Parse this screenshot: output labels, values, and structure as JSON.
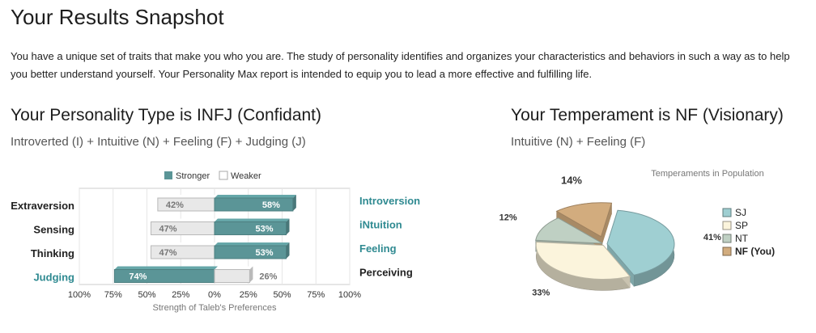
{
  "page": {
    "title": "Your Results Snapshot",
    "intro": "You have a unique set of traits that make you who you are. The study of personality identifies and organizes your characteristics and behaviors in such a way as to help you better understand yourself. Your Personality Max report is intended to equip you to lead a more effective and fulfilling life."
  },
  "personality": {
    "heading": "Your Personality Type is INFJ (Confidant)",
    "subheading": "Introverted (I) + Intuitive (N) + Feeling (F) + Judging (J)"
  },
  "temperament": {
    "heading": "Your Temperament is NF (Visionary)",
    "subheading": "Intuitive (N) + Feeling (F)"
  },
  "colors": {
    "stronger": "#5b9597",
    "weaker": "#e8e8e8",
    "accent": "#2f8a91",
    "SJ": "#9fcfd2",
    "SP": "#fbf4dc",
    "NT": "#bfd0c3",
    "NF": "#d2ac7e"
  },
  "chart_data": [
    {
      "type": "bar",
      "title": "",
      "xlabel": "Strength of Taleb's Preferences",
      "ylabel": "",
      "xlim": [
        -100,
        100
      ],
      "x_ticks": [
        "100%",
        "75%",
        "50%",
        "25%",
        "0%",
        "25%",
        "50%",
        "75%",
        "100%"
      ],
      "legend": {
        "position": "top",
        "stronger": "Stronger",
        "weaker": "Weaker"
      },
      "rows": [
        {
          "left": "Extraversion",
          "right": "Introversion",
          "left_value": 42,
          "right_value": 58,
          "left_label": "42%",
          "right_label": "58%",
          "stronger": "right"
        },
        {
          "left": "Sensing",
          "right": "iNtuition",
          "left_value": 47,
          "right_value": 53,
          "left_label": "47%",
          "right_label": "53%",
          "stronger": "right"
        },
        {
          "left": "Thinking",
          "right": "Feeling",
          "left_value": 47,
          "right_value": 53,
          "left_label": "47%",
          "right_label": "53%",
          "stronger": "right"
        },
        {
          "left": "Judging",
          "right": "Perceiving",
          "left_value": 74,
          "right_value": 26,
          "left_label": "74%",
          "right_label": "26%",
          "stronger": "left"
        }
      ]
    },
    {
      "type": "pie",
      "title": "Temperaments in Population",
      "legend_position": "right",
      "slices": [
        {
          "key": "SJ",
          "label": "SJ",
          "value": 41,
          "value_label": "41%"
        },
        {
          "key": "SP",
          "label": "SP",
          "value": 33,
          "value_label": "33%"
        },
        {
          "key": "NT",
          "label": "NT",
          "value": 12,
          "value_label": "12%"
        },
        {
          "key": "NF",
          "label": "NF (You)",
          "value": 14,
          "value_label": "14%",
          "exploded": true
        }
      ]
    }
  ]
}
